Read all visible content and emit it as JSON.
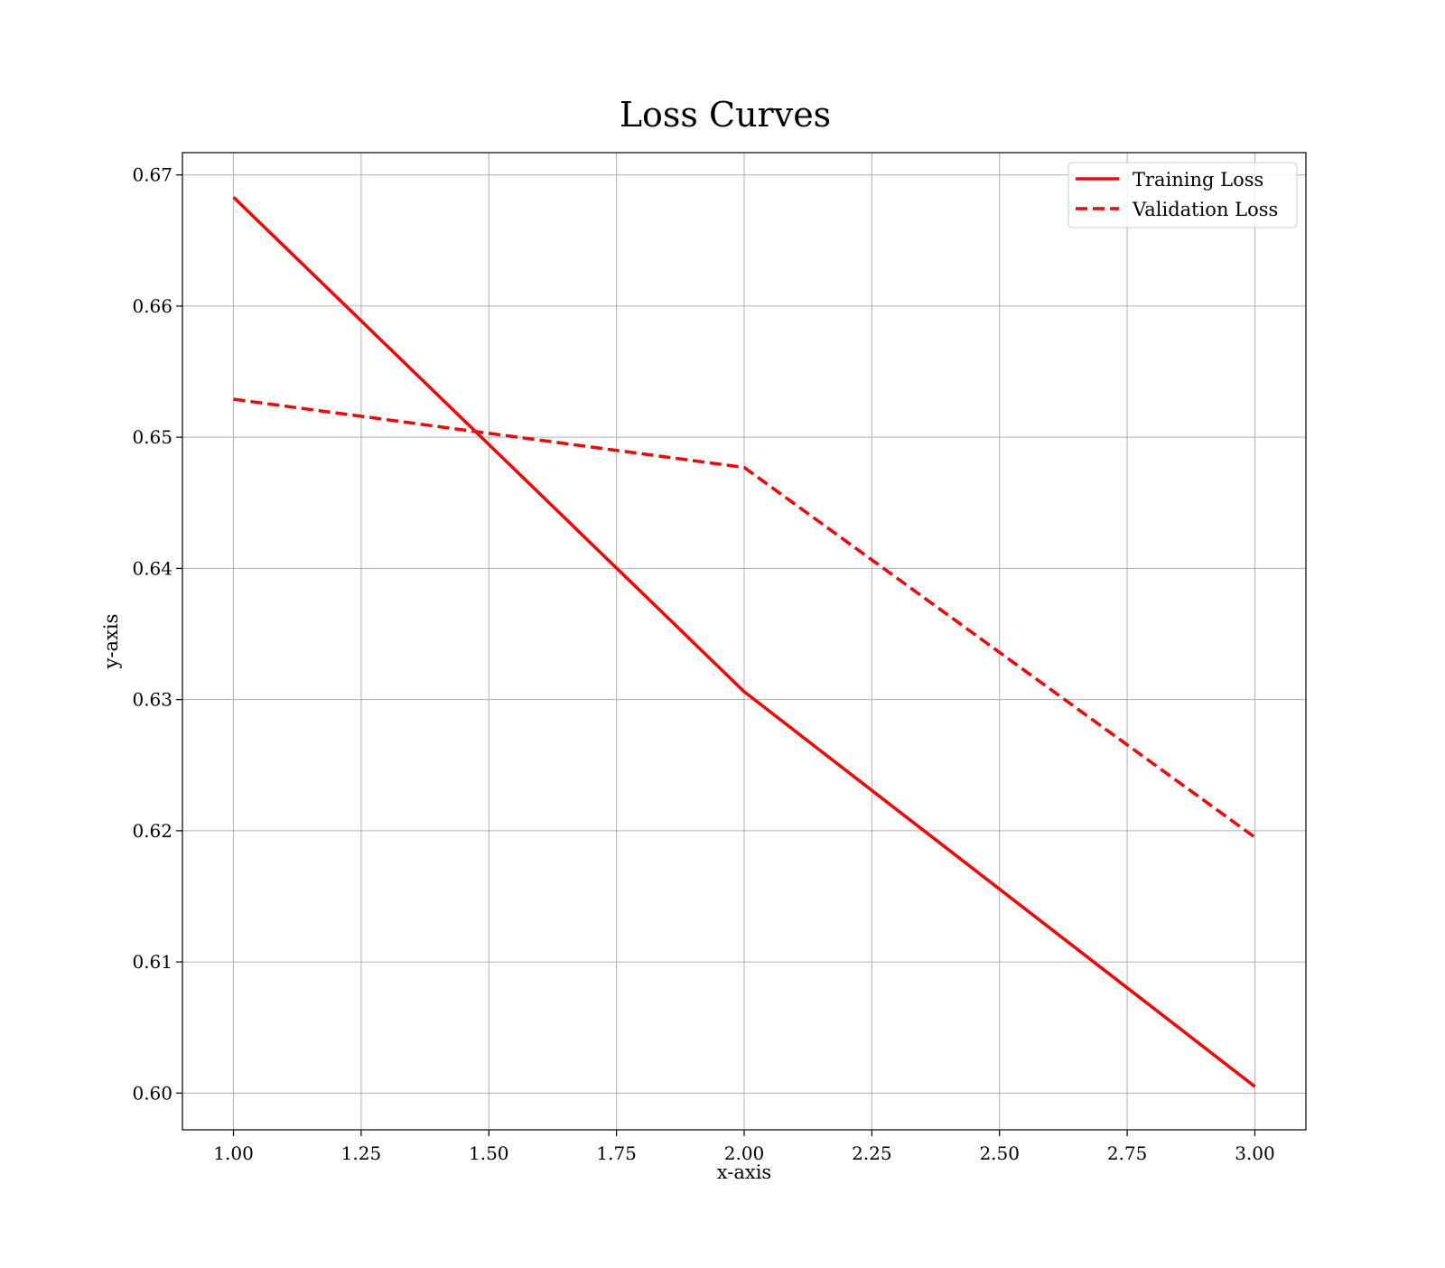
{
  "chart_data": {
    "type": "line",
    "title": "Loss Curves",
    "xlabel": "x-axis",
    "ylabel": "y-axis",
    "xlim": [
      0.9,
      3.1
    ],
    "ylim": [
      0.5972,
      0.6717
    ],
    "xticks": [
      1.0,
      1.25,
      1.5,
      1.75,
      2.0,
      2.25,
      2.5,
      2.75,
      3.0
    ],
    "xtick_labels": [
      "1.00",
      "1.25",
      "1.50",
      "1.75",
      "2.00",
      "2.25",
      "2.50",
      "2.75",
      "3.00"
    ],
    "yticks": [
      0.6,
      0.61,
      0.62,
      0.63,
      0.64,
      0.65,
      0.66,
      0.67
    ],
    "ytick_labels": [
      "0.60",
      "0.61",
      "0.62",
      "0.63",
      "0.64",
      "0.65",
      "0.66",
      "0.67"
    ],
    "grid": true,
    "legend_position": "top-right",
    "series": [
      {
        "name": "Training Loss",
        "x": [
          1.0,
          2.0,
          3.0
        ],
        "y": [
          0.6683,
          0.6306,
          0.6005
        ],
        "color": "#ff0000",
        "style": "solid"
      },
      {
        "name": "Validation Loss",
        "x": [
          1.0,
          2.0,
          3.0
        ],
        "y": [
          0.6529,
          0.6477,
          0.6195
        ],
        "color": "#ff0000",
        "style": "dashed"
      }
    ]
  }
}
